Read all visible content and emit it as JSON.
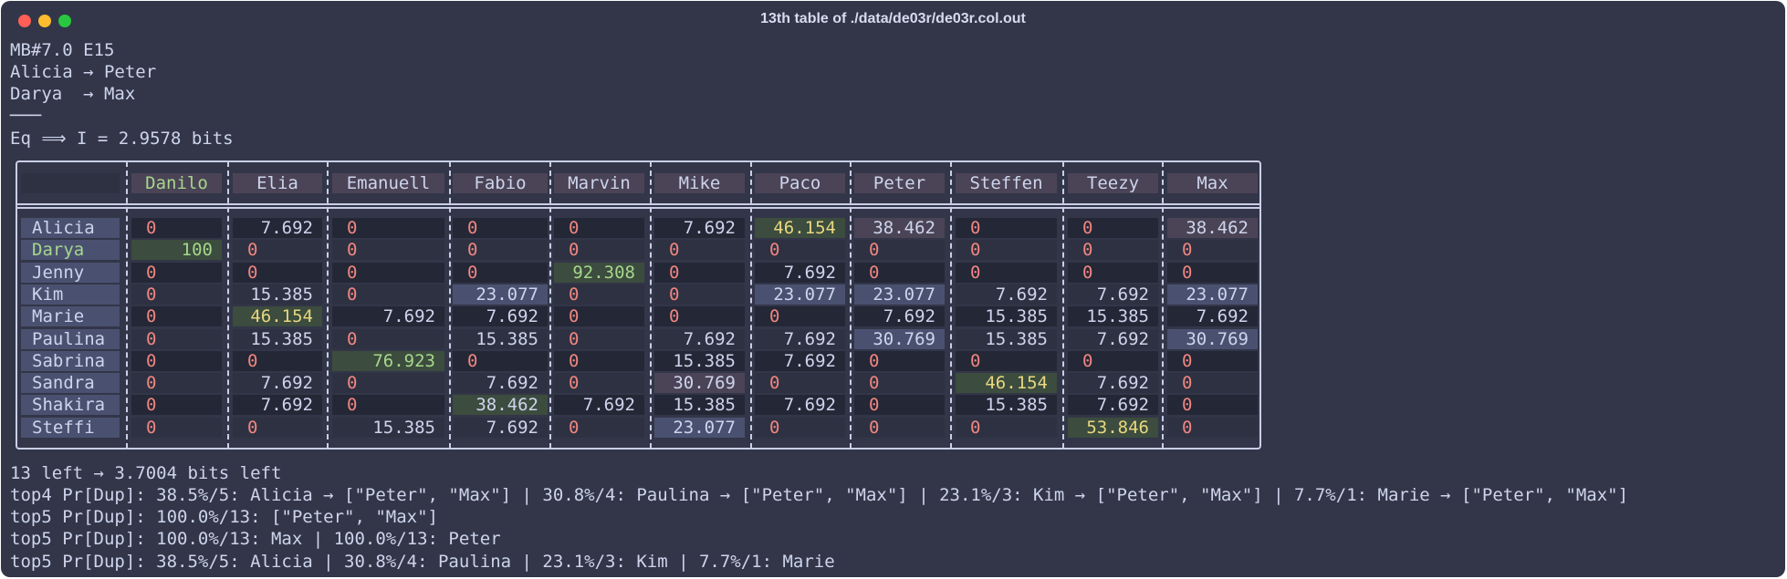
{
  "window": {
    "title": "13th table of ./data/de03r/de03r.col.out"
  },
  "header_lines": [
    "MB#7.0 E15",
    "Alicia → Peter",
    "Darya  → Max",
    "───",
    "Eq ⟹ I = 2.9578 bits"
  ],
  "table": {
    "columns": [
      "Danilo",
      "Elia",
      "Emanuell",
      "Fabio",
      "Marvin",
      "Mike",
      "Paco",
      "Peter",
      "Steffen",
      "Teezy",
      "Max"
    ],
    "rows": [
      {
        "name": "Alicia",
        "cells": [
          "0",
          "7.692",
          "0",
          "0",
          "0",
          "7.692",
          "46.154",
          "38.462",
          "0",
          "0",
          "38.462"
        ]
      },
      {
        "name": "Darya",
        "cells": [
          "100",
          "0",
          "0",
          "0",
          "0",
          "0",
          "0",
          "0",
          "0",
          "0",
          "0"
        ]
      },
      {
        "name": "Jenny",
        "cells": [
          "0",
          "0",
          "0",
          "0",
          "92.308",
          "0",
          "7.692",
          "0",
          "0",
          "0",
          "0"
        ]
      },
      {
        "name": "Kim",
        "cells": [
          "0",
          "15.385",
          "0",
          "23.077",
          "0",
          "0",
          "23.077",
          "23.077",
          "7.692",
          "7.692",
          "23.077"
        ]
      },
      {
        "name": "Marie",
        "cells": [
          "0",
          "46.154",
          "7.692",
          "7.692",
          "0",
          "0",
          "0",
          "7.692",
          "15.385",
          "15.385",
          "7.692"
        ]
      },
      {
        "name": "Paulina",
        "cells": [
          "0",
          "15.385",
          "0",
          "15.385",
          "0",
          "7.692",
          "7.692",
          "30.769",
          "15.385",
          "7.692",
          "30.769"
        ]
      },
      {
        "name": "Sabrina",
        "cells": [
          "0",
          "0",
          "76.923",
          "0",
          "0",
          "15.385",
          "7.692",
          "0",
          "0",
          "0",
          "0"
        ]
      },
      {
        "name": "Sandra",
        "cells": [
          "0",
          "7.692",
          "0",
          "7.692",
          "0",
          "30.769",
          "0",
          "0",
          "46.154",
          "7.692",
          "0"
        ]
      },
      {
        "name": "Shakira",
        "cells": [
          "0",
          "7.692",
          "0",
          "38.462",
          "7.692",
          "15.385",
          "7.692",
          "0",
          "15.385",
          "7.692",
          "0"
        ]
      },
      {
        "name": "Steffi",
        "cells": [
          "0",
          "0",
          "15.385",
          "7.692",
          "0",
          "23.077",
          "0",
          "0",
          "0",
          "53.846",
          "0"
        ]
      }
    ]
  },
  "footer_lines": [
    "13 left → 3.7004 bits left",
    "top4 Pr[Dup]: 38.5%/5: Alicia → [\"Peter\", \"Max\"] | 30.8%/4: Paulina → [\"Peter\", \"Max\"] | 23.1%/3: Kim → [\"Peter\", \"Max\"] | 7.7%/1: Marie → [\"Peter\", \"Max\"]",
    "top5 Pr[Dup]: 100.0%/13: [\"Peter\", \"Max\"]",
    "top5 Pr[Dup]: 100.0%/13: Max | 100.0%/13: Peter",
    "top5 Pr[Dup]: 38.5%/5: Alicia | 30.8%/4: Paulina | 23.1%/3: Kim | 7.7%/1: Marie"
  ],
  "colors": {
    "background": "#323648",
    "zero_text": "#f08680",
    "highlight_yellow": "#e8d77f",
    "highlight_green": "#a6d68c",
    "cell_blue": "#4a5170",
    "cell_pink": "#4b4456",
    "cell_green": "#3c4c3e"
  }
}
